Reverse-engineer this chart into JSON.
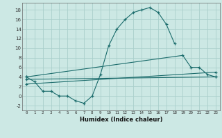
{
  "xlabel": "Humidex (Indice chaleur)",
  "bg_color": "#cce8e4",
  "grid_color": "#aacfcc",
  "line_color": "#1a6b6b",
  "xlim": [
    -0.5,
    23.5
  ],
  "ylim": [
    -3,
    19.5
  ],
  "xticks": [
    0,
    1,
    2,
    3,
    4,
    5,
    6,
    7,
    8,
    9,
    10,
    11,
    12,
    13,
    14,
    15,
    16,
    17,
    18,
    19,
    20,
    21,
    22,
    23
  ],
  "yticks": [
    -2,
    0,
    2,
    4,
    6,
    8,
    10,
    12,
    14,
    16,
    18
  ],
  "series": [
    {
      "x": [
        0,
        1,
        2,
        3,
        4,
        5,
        6,
        7,
        8,
        9,
        10,
        11,
        12,
        13,
        14,
        15,
        16,
        17,
        18
      ],
      "y": [
        4,
        3,
        1,
        1,
        0,
        0,
        -1,
        -1.5,
        0,
        4.5,
        10.5,
        14,
        16,
        17.5,
        18,
        18.5,
        17.5,
        15,
        11
      ]
    },
    {
      "x": [
        0,
        19,
        20,
        21,
        22,
        23
      ],
      "y": [
        4,
        8.5,
        6,
        6,
        4.5,
        4
      ]
    },
    {
      "x": [
        0,
        23
      ],
      "y": [
        2.5,
        5
      ]
    },
    {
      "x": [
        0,
        23
      ],
      "y": [
        3.5,
        4
      ]
    }
  ]
}
